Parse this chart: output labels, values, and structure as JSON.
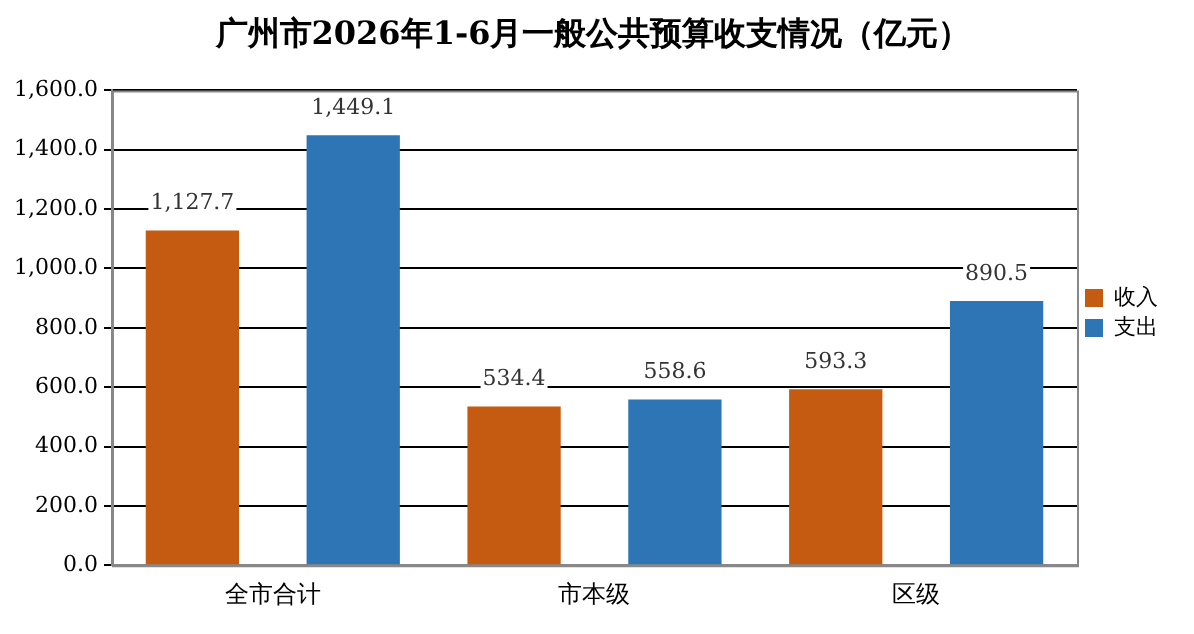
{
  "chart_data": {
    "type": "bar",
    "title": "广州市2026年1-6月一般公共预算收支情况（亿元）",
    "categories": [
      "全市合计",
      "市本级",
      "区级"
    ],
    "series": [
      {
        "name": "收入",
        "color": "#c55a11",
        "values": [
          1127.7,
          534.4,
          593.3
        ],
        "value_labels": [
          "1,127.7",
          "534.4",
          "593.3"
        ]
      },
      {
        "name": "支出",
        "color": "#2e75b6",
        "values": [
          1449.1,
          558.6,
          890.5
        ],
        "value_labels": [
          "1,449.1",
          "558.6",
          "890.5"
        ]
      }
    ],
    "ylim": [
      0,
      1600
    ],
    "yticks": [
      {
        "value": 0,
        "label": "0.0"
      },
      {
        "value": 200,
        "label": "200.0"
      },
      {
        "value": 400,
        "label": "400.0"
      },
      {
        "value": 600,
        "label": "600.0"
      },
      {
        "value": 800,
        "label": "800.0"
      },
      {
        "value": 1000,
        "label": "1,000.0"
      },
      {
        "value": 1200,
        "label": "1,200.0"
      },
      {
        "value": 1400,
        "label": "1,400.0"
      },
      {
        "value": 1600,
        "label": "1,600.0"
      }
    ],
    "grid": "y",
    "legend": "right"
  }
}
